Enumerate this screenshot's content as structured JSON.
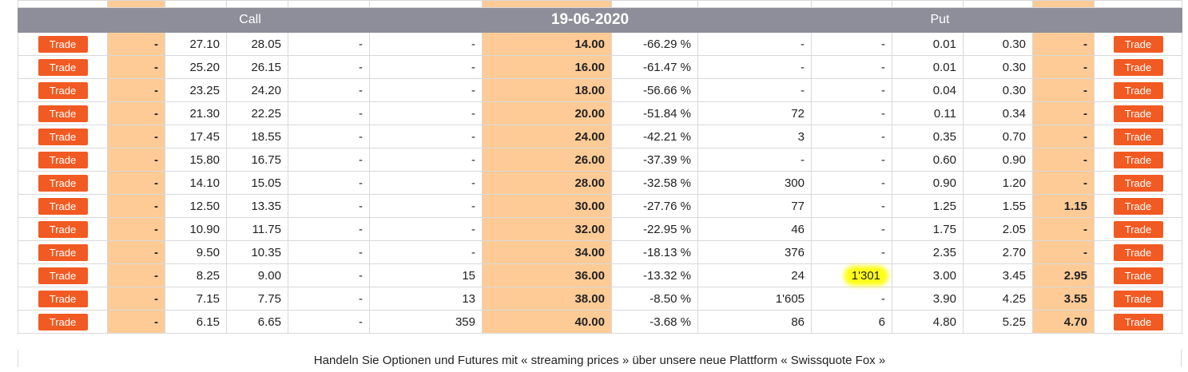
{
  "header": {
    "call": "Call",
    "date": "19-06-2020",
    "put": "Put"
  },
  "trade_label": "Trade",
  "rows": [
    {
      "call_last": "-",
      "call_bid": "27.10",
      "call_ask": "28.05",
      "call_c4": "-",
      "call_c5": "-",
      "strike": "14.00",
      "pct": "-66.29 %",
      "put_c1": "-",
      "put_c2": "-",
      "put_bid": "0.01",
      "put_ask": "0.30",
      "put_last": "-"
    },
    {
      "call_last": "-",
      "call_bid": "25.20",
      "call_ask": "26.15",
      "call_c4": "-",
      "call_c5": "-",
      "strike": "16.00",
      "pct": "-61.47 %",
      "put_c1": "-",
      "put_c2": "-",
      "put_bid": "0.01",
      "put_ask": "0.30",
      "put_last": "-"
    },
    {
      "call_last": "-",
      "call_bid": "23.25",
      "call_ask": "24.20",
      "call_c4": "-",
      "call_c5": "-",
      "strike": "18.00",
      "pct": "-56.66 %",
      "put_c1": "-",
      "put_c2": "-",
      "put_bid": "0.04",
      "put_ask": "0.30",
      "put_last": "-"
    },
    {
      "call_last": "-",
      "call_bid": "21.30",
      "call_ask": "22.25",
      "call_c4": "-",
      "call_c5": "-",
      "strike": "20.00",
      "pct": "-51.84 %",
      "put_c1": "72",
      "put_c2": "-",
      "put_bid": "0.11",
      "put_ask": "0.34",
      "put_last": "-"
    },
    {
      "call_last": "-",
      "call_bid": "17.45",
      "call_ask": "18.55",
      "call_c4": "-",
      "call_c5": "-",
      "strike": "24.00",
      "pct": "-42.21 %",
      "put_c1": "3",
      "put_c2": "-",
      "put_bid": "0.35",
      "put_ask": "0.70",
      "put_last": "-"
    },
    {
      "call_last": "-",
      "call_bid": "15.80",
      "call_ask": "16.75",
      "call_c4": "-",
      "call_c5": "-",
      "strike": "26.00",
      "pct": "-37.39 %",
      "put_c1": "-",
      "put_c2": "-",
      "put_bid": "0.60",
      "put_ask": "0.90",
      "put_last": "-"
    },
    {
      "call_last": "-",
      "call_bid": "14.10",
      "call_ask": "15.05",
      "call_c4": "-",
      "call_c5": "-",
      "strike": "28.00",
      "pct": "-32.58 %",
      "put_c1": "300",
      "put_c2": "-",
      "put_bid": "0.90",
      "put_ask": "1.20",
      "put_last": "-"
    },
    {
      "call_last": "-",
      "call_bid": "12.50",
      "call_ask": "13.35",
      "call_c4": "-",
      "call_c5": "-",
      "strike": "30.00",
      "pct": "-27.76 %",
      "put_c1": "77",
      "put_c2": "-",
      "put_bid": "1.25",
      "put_ask": "1.55",
      "put_last": "1.15"
    },
    {
      "call_last": "-",
      "call_bid": "10.90",
      "call_ask": "11.75",
      "call_c4": "-",
      "call_c5": "-",
      "strike": "32.00",
      "pct": "-22.95 %",
      "put_c1": "46",
      "put_c2": "-",
      "put_bid": "1.75",
      "put_ask": "2.05",
      "put_last": "-"
    },
    {
      "call_last": "-",
      "call_bid": "9.50",
      "call_ask": "10.35",
      "call_c4": "-",
      "call_c5": "-",
      "strike": "34.00",
      "pct": "-18.13 %",
      "put_c1": "376",
      "put_c2": "-",
      "put_bid": "2.35",
      "put_ask": "2.70",
      "put_last": "-"
    },
    {
      "call_last": "-",
      "call_bid": "8.25",
      "call_ask": "9.00",
      "call_c4": "-",
      "call_c5": "15",
      "strike": "36.00",
      "pct": "-13.32 %",
      "put_c1": "24",
      "put_c2": "1'301",
      "put_bid": "3.00",
      "put_ask": "3.45",
      "put_last": "2.95"
    },
    {
      "call_last": "-",
      "call_bid": "7.15",
      "call_ask": "7.75",
      "call_c4": "-",
      "call_c5": "13",
      "strike": "38.00",
      "pct": "-8.50 %",
      "put_c1": "1'605",
      "put_c2": "-",
      "put_bid": "3.90",
      "put_ask": "4.25",
      "put_last": "3.55"
    },
    {
      "call_last": "-",
      "call_bid": "6.15",
      "call_ask": "6.65",
      "call_c4": "-",
      "call_c5": "359",
      "strike": "40.00",
      "pct": "-3.68 %",
      "put_c1": "86",
      "put_c2": "6",
      "put_bid": "4.80",
      "put_ask": "5.25",
      "put_last": "4.70"
    }
  ],
  "footer": {
    "text": "Handeln Sie Optionen und Futures mit « streaming prices » über unsere neue Plattform « Swissquote Fox »"
  },
  "colors": {
    "header_bg": "#8d8e99",
    "last_bg": "#fecb96",
    "trade_btn": "#f15a22",
    "highlight": "#ffff1a"
  }
}
